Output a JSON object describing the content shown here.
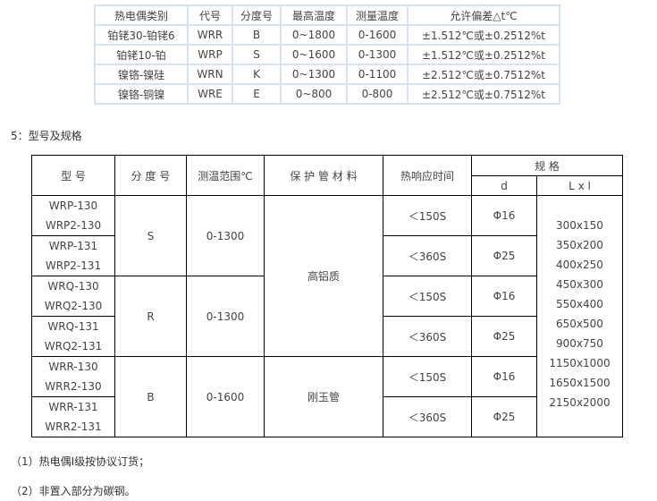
{
  "table1": {
    "headers": [
      "热电偶类别",
      "代号",
      "分度号",
      "最高温度",
      "测量温度",
      "允许偏差△t℃"
    ],
    "rows": [
      [
        "铂铑30-铂铑6",
        "WRR",
        "B",
        "0~1800",
        "0-1600",
        "±1.512℃或±0.2512%t"
      ],
      [
        "铂铑10-铂",
        "WRP",
        "S",
        "0~1600",
        "0-1300",
        "±1.512℃或±0.2512%t"
      ],
      [
        "镍铬-镍硅",
        "WRN",
        "K",
        "0~1300",
        "0-1100",
        "±2.512℃或±0.7512%t"
      ],
      [
        "镍铬-铜镍",
        "WRE",
        "E",
        "0~800",
        "0-800",
        "±2.512℃或±0.7512%t"
      ]
    ]
  },
  "section_title": "5：型号及规格",
  "table2": {
    "headers": {
      "model": "型 号",
      "grad": "分 度 号",
      "range": "测温范围℃",
      "material": "保 护 管 材 料",
      "time": "热响应时间",
      "spec": "规 格",
      "d": "d",
      "lxl": "L x l"
    },
    "models": [
      [
        "WRP-130",
        "WRP2-130"
      ],
      [
        "WRP-131",
        "WRP2-131"
      ],
      [
        "WRQ-130",
        "WRQ2-130"
      ],
      [
        "WRQ-131",
        "WRQ2-131"
      ],
      [
        "WRR-130",
        "WRR2-130"
      ],
      [
        "WRR-131",
        "WRR2-131"
      ]
    ],
    "grads": [
      "S",
      "R",
      "B"
    ],
    "ranges": [
      "0-1300",
      "0-1300",
      "0-1600"
    ],
    "materials": [
      "高铝质",
      "刚玉管"
    ],
    "times": [
      "＜150S",
      "＜360S",
      "＜150S",
      "＜360S",
      "＜150S",
      "＜360S"
    ],
    "ds": [
      "Φ16",
      "Φ25",
      "Φ16",
      "Φ25",
      "Φ16",
      "Φ25"
    ],
    "lxl": [
      "300x150",
      "350x200",
      "400x250",
      "450x300",
      "550x400",
      "650x500",
      "900x750",
      "1150x1000",
      "1650x1500",
      "2150x2000"
    ]
  },
  "notes": [
    "（1）热电偶Ⅰ级按协议订货；",
    "（2）非置入部分为碳钢。"
  ]
}
